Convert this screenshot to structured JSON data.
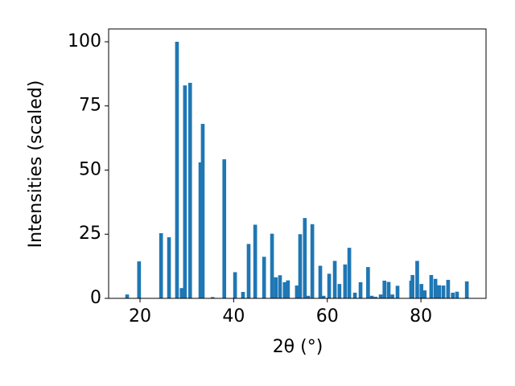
{
  "chart_data": {
    "type": "bar",
    "x_label": "2θ (°)",
    "y_label": "Intensities (scaled)",
    "x": [
      17.25,
      19.8,
      24.5,
      26.2,
      27.9,
      28.9,
      29.6,
      30.7,
      32.9,
      33.4,
      35.5,
      38.0,
      40.3,
      42.0,
      43.2,
      44.6,
      46.5,
      48.2,
      49.0,
      49.9,
      50.9,
      51.6,
      53.5,
      54.2,
      55.2,
      55.9,
      56.8,
      58.5,
      59.2,
      60.4,
      61.6,
      62.6,
      63.8,
      64.7,
      65.9,
      67.1,
      68.7,
      69.5,
      70.3,
      71.4,
      72.2,
      73.1,
      73.9,
      75.0,
      77.9,
      78.2,
      79.2,
      80.1,
      80.8,
      82.2,
      83.1,
      83.9,
      84.8,
      85.8,
      86.8,
      87.7,
      89.8
    ],
    "values": [
      1.5,
      14.4,
      25.4,
      23.8,
      100,
      4,
      83,
      84,
      53,
      68,
      0.5,
      54.2,
      10.2,
      2.5,
      21.2,
      28.7,
      16.2,
      25.2,
      8.2,
      9,
      6.3,
      7,
      5,
      25,
      31.3,
      1,
      28.9,
      12.7,
      1,
      9.6,
      14.6,
      5.6,
      13.2,
      19.7,
      2.2,
      6.3,
      12.2,
      1,
      0.6,
      1.5,
      6.9,
      6.4,
      1.5,
      4.9,
      6.9,
      9.1,
      14.6,
      5.6,
      3.1,
      9.1,
      7.6,
      5.1,
      5,
      7.2,
      2.2,
      2.6,
      6.6
    ],
    "color": "#1f77b4",
    "xlim": [
      13.3,
      93.9
    ],
    "xticks": [
      20,
      40,
      60,
      80
    ],
    "ylim": [
      0,
      105
    ],
    "yticks": [
      0,
      25,
      50,
      75,
      100
    ]
  }
}
